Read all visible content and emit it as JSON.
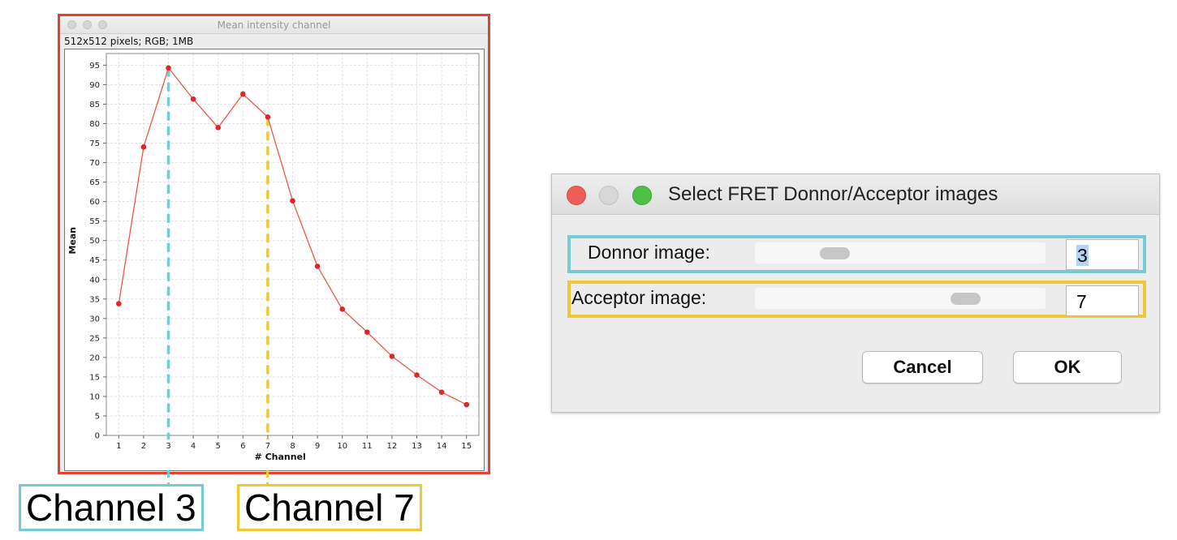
{
  "plot_window": {
    "title": "Mean intensity channel",
    "info": "512x512 pixels; RGB; 1MB"
  },
  "chart_data": {
    "type": "line",
    "xlabel": "# Channel",
    "ylabel": "Mean",
    "x": [
      1,
      2,
      3,
      4,
      5,
      6,
      7,
      8,
      9,
      10,
      11,
      12,
      13,
      14,
      15
    ],
    "series": [
      {
        "values": [
          33.8,
          74,
          94.3,
          86.3,
          79,
          87.6,
          81.7,
          60.2,
          43.4,
          32.4,
          26.5,
          20.3,
          15.5,
          11.1,
          7.9
        ]
      }
    ],
    "xlim": [
      0.5,
      15.5
    ],
    "ylim": [
      0,
      98
    ],
    "x_ticks": [
      1,
      2,
      3,
      4,
      5,
      6,
      7,
      8,
      9,
      10,
      11,
      12,
      13,
      14,
      15
    ],
    "y_ticks": [
      0,
      5,
      10,
      15,
      20,
      25,
      30,
      35,
      40,
      45,
      50,
      55,
      60,
      65,
      70,
      75,
      80,
      85,
      90,
      95
    ],
    "grid": true,
    "line_color": "#e8594a",
    "marker_color": "#e0242a",
    "markers": [
      {
        "x": 3,
        "color": "#74cad6"
      },
      {
        "x": 7,
        "color": "#f0c735"
      }
    ]
  },
  "channel_labels": [
    {
      "text": "Channel 3",
      "color": "#74cad6"
    },
    {
      "text": "Channel 7",
      "color": "#f0c735"
    }
  ],
  "dialog": {
    "title": "Select FRET Donnor/Acceptor images",
    "donor": {
      "label": "Donnor image:",
      "value": "3",
      "slider_fraction": 0.25
    },
    "acceptor": {
      "label": "Acceptor image:",
      "value": "7",
      "slider_fraction": 0.75
    },
    "cancel_label": "Cancel",
    "ok_label": "OK"
  },
  "colors": {
    "plot_frame": "#e0432e",
    "donor_frame": "#74cad6",
    "acceptor_frame": "#f0c735"
  }
}
